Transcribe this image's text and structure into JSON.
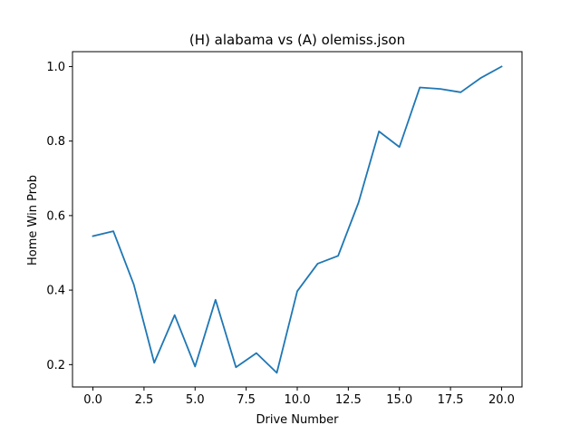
{
  "chart_data": {
    "type": "line",
    "title": "(H) alabama vs (A) olemiss.json",
    "xlabel": "Drive Number",
    "ylabel": "Home Win Prob",
    "xlim": [
      -1.0,
      21.0
    ],
    "ylim": [
      0.14,
      1.04
    ],
    "xticks": [
      0.0,
      2.5,
      5.0,
      7.5,
      10.0,
      12.5,
      15.0,
      17.5,
      20.0
    ],
    "xtick_labels": [
      "0.0",
      "2.5",
      "5.0",
      "7.5",
      "10.0",
      "12.5",
      "15.0",
      "17.5",
      "20.0"
    ],
    "yticks": [
      0.2,
      0.4,
      0.6,
      0.8,
      1.0
    ],
    "ytick_labels": [
      "0.2",
      "0.4",
      "0.6",
      "0.8",
      "1.0"
    ],
    "grid": false,
    "line_color": "#1f77b4",
    "x": [
      0,
      1,
      2,
      3,
      4,
      5,
      6,
      7,
      8,
      9,
      10,
      11,
      12,
      13,
      14,
      15,
      16,
      17,
      18,
      19,
      20
    ],
    "y": [
      0.545,
      0.558,
      0.415,
      0.205,
      0.333,
      0.195,
      0.374,
      0.193,
      0.231,
      0.178,
      0.397,
      0.471,
      0.492,
      0.635,
      0.826,
      0.784,
      0.944,
      0.94,
      0.931,
      0.97,
      1.0
    ]
  }
}
